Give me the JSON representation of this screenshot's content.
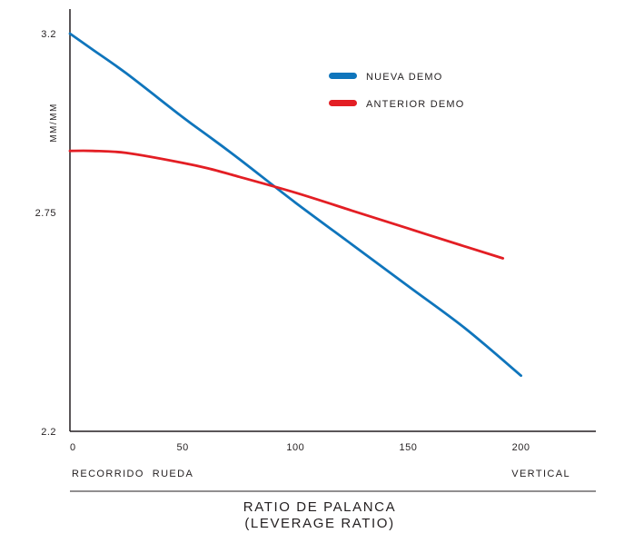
{
  "chart_data": {
    "type": "line",
    "title_lines": [
      "RATIO DE PALANCA",
      "(LEVERAGE RATIO)"
    ],
    "ylabel": "MM/MM",
    "xlabel_start": "RECORRIDO  RUEDA",
    "xlabel_end": "VERTICAL",
    "xlim": [
      0,
      232
    ],
    "ylim": [
      2.2,
      3.2
    ],
    "x_ticks": [
      0,
      50,
      100,
      150,
      200
    ],
    "x_tick_labels": [
      "0",
      "50",
      "100",
      "150",
      "200"
    ],
    "y_ticks": [
      2.2,
      2.75,
      3.2
    ],
    "y_tick_labels": [
      "2.2",
      "2.75",
      "3.2"
    ],
    "legend_position": "top-right",
    "grid": false,
    "series": [
      {
        "name": "NUEVA DEMO",
        "color": "#0f75bc",
        "x": [
          0,
          10,
          25,
          50,
          62,
          75,
          100,
          125,
          150,
          175,
          200
        ],
        "y": [
          3.2,
          3.16,
          3.1,
          2.99,
          2.94,
          2.885,
          2.775,
          2.67,
          2.565,
          2.46,
          2.34
        ]
      },
      {
        "name": "ANTERIOR DEMO",
        "color": "#e31e24",
        "x": [
          0,
          10,
          25,
          50,
          62,
          75,
          100,
          125,
          150,
          175,
          192
        ],
        "y": [
          2.905,
          2.905,
          2.9,
          2.875,
          2.86,
          2.84,
          2.8,
          2.755,
          2.71,
          2.665,
          2.635
        ]
      }
    ]
  }
}
